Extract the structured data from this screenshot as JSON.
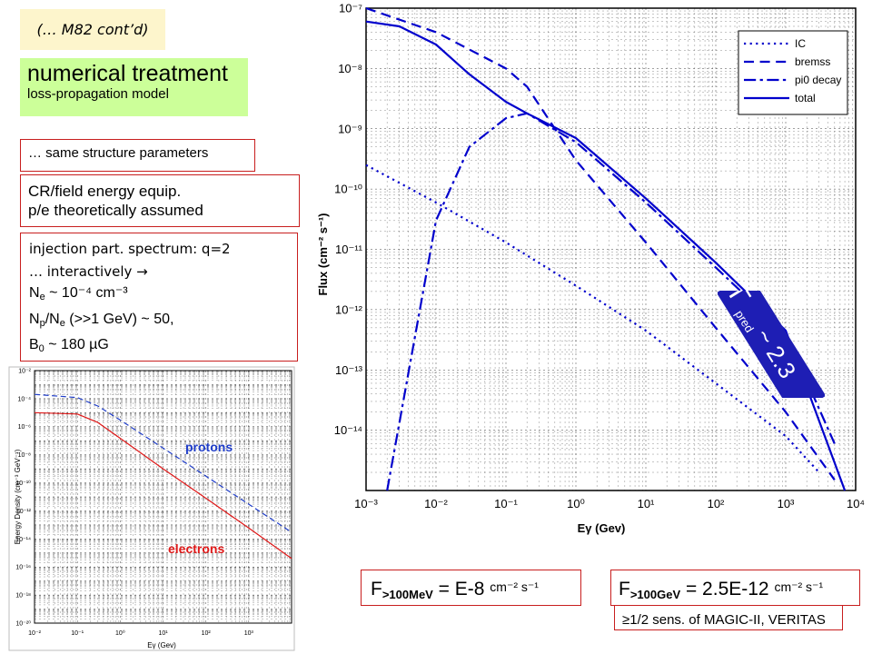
{
  "slide": {
    "continuation": "(… M82 cont’d)",
    "heading": "numerical treatment",
    "subheading": "loss-propagation model",
    "box_structure": "… same structure parameters",
    "box_equip": {
      "line1": "CR/field energy equip.",
      "line2": "p/e theoretically assumed"
    },
    "box_params": {
      "line1": "injection part. spectrum: q=2",
      "line2": "… interactively  →",
      "ne_label": "N",
      "ne_sub": "e",
      "ne_value": " ~ 10⁻⁴ cm⁻³",
      "np_label": "N",
      "np_sub": "p",
      "np_mid": "/N",
      "np_sub2": "e",
      "np_value": " (>>1 GeV) ~ 50,",
      "b_label": "B",
      "b_sub": "0",
      "b_value": " ~ 180 µG"
    },
    "caption_low": {
      "main": "F",
      "sub": ">100MeV",
      "value": " = E-8 ",
      "unit": "cm⁻² s⁻¹"
    },
    "caption_high": {
      "main": "F",
      "sub": ">100GeV",
      "value": " = 2.5E-12 ",
      "unit": "cm⁻² s⁻¹"
    },
    "caption_sens": "≥1/2 sens. of MAGIC-II, VERITAS",
    "gamma_badge": {
      "symbol": "Γ",
      "sub": "pred",
      "value": " ~ 2.3"
    }
  },
  "chart_data": [
    {
      "type": "line",
      "title": "",
      "xlabel": "Eγ (Gev)",
      "ylabel": "Flux (cm⁻² s⁻¹)",
      "xscale": "log",
      "yscale": "log",
      "xlim": [
        0.001,
        10000
      ],
      "ylim": [
        1e-15,
        1e-07
      ],
      "x_tick_labels": [
        "10⁻³",
        "10⁻²",
        "10⁻¹",
        "10⁰",
        "10¹",
        "10²",
        "10³",
        "10⁴"
      ],
      "y_tick_labels": [
        "10⁻¹⁴",
        "10⁻¹³",
        "10⁻¹²",
        "10⁻¹¹",
        "10⁻¹⁰",
        "10⁻⁹",
        "10⁻⁸",
        "10⁻⁷"
      ],
      "grid": true,
      "legend_position": "top-right",
      "series": [
        {
          "name": "IC",
          "style": "dotted",
          "color": "#0000cc",
          "x": [
            0.001,
            0.01,
            0.1,
            1,
            10,
            100,
            1000,
            3000
          ],
          "y": [
            2.5e-10,
            6e-11,
            1.3e-11,
            2.5e-12,
            4.5e-13,
            6e-14,
            8e-15,
            2e-15
          ]
        },
        {
          "name": "bremss",
          "style": "dashed",
          "color": "#0000cc",
          "x": [
            0.001,
            0.01,
            0.1,
            0.2,
            1,
            10,
            100,
            1000,
            5000
          ],
          "y": [
            1e-07,
            4e-08,
            1e-08,
            5e-09,
            3e-10,
            1.3e-11,
            5e-13,
            2e-14,
            1.5e-15
          ]
        },
        {
          "name": "pi0 decay",
          "style": "dash-dot",
          "color": "#0000cc",
          "x": [
            0.002,
            0.01,
            0.03,
            0.1,
            0.2,
            1,
            10,
            100,
            1000,
            5000
          ],
          "y": [
            1e-15,
            3e-11,
            5e-10,
            1.5e-09,
            1.8e-09,
            6e-10,
            6e-11,
            5e-12,
            4e-13,
            6e-15
          ]
        },
        {
          "name": "total",
          "style": "solid",
          "color": "#0000cc",
          "x": [
            0.001,
            0.003,
            0.01,
            0.03,
            0.1,
            0.2,
            1,
            10,
            100,
            1000,
            7000
          ],
          "y": [
            6e-08,
            5e-08,
            2.5e-08,
            8e-09,
            2.8e-09,
            1.8e-09,
            7e-10,
            7e-11,
            6e-12,
            4.5e-13,
            1e-15
          ]
        }
      ]
    },
    {
      "type": "line",
      "title": "",
      "xlabel": "Eγ (Gev)",
      "ylabel": "Energy Density (cm⁻³ GeV⁻¹)",
      "xscale": "log",
      "yscale": "log",
      "xlim": [
        0.01,
        10000
      ],
      "ylim": [
        1e-20,
        0.01
      ],
      "x_tick_labels": [
        "10⁻²",
        "10⁻¹",
        "10⁰",
        "10¹",
        "10²",
        "10³"
      ],
      "y_tick_labels": [
        "10⁻²",
        "10⁻⁴",
        "10⁻⁶",
        "10⁻⁸",
        "10⁻¹⁰",
        "10⁻¹²",
        "10⁻¹⁴",
        "10⁻¹⁶",
        "10⁻¹⁸",
        "10⁻²⁰"
      ],
      "grid": true,
      "series": [
        {
          "name": "protons",
          "style": "dashed",
          "color": "#1e3cc8",
          "x": [
            0.01,
            0.1,
            0.3,
            1,
            10,
            100,
            1000,
            10000
          ],
          "y": [
            0.0002,
            0.00012,
            3e-05,
            3e-06,
            3e-08,
            3e-10,
            3e-12,
            3e-14
          ]
        },
        {
          "name": "electrons",
          "style": "solid",
          "color": "#e01818",
          "x": [
            0.01,
            0.1,
            0.3,
            1,
            10,
            100,
            1000,
            10000
          ],
          "y": [
            1e-05,
            8e-06,
            2e-06,
            1.5e-07,
            1e-09,
            8e-12,
            6e-14,
            4e-16
          ]
        }
      ]
    }
  ]
}
